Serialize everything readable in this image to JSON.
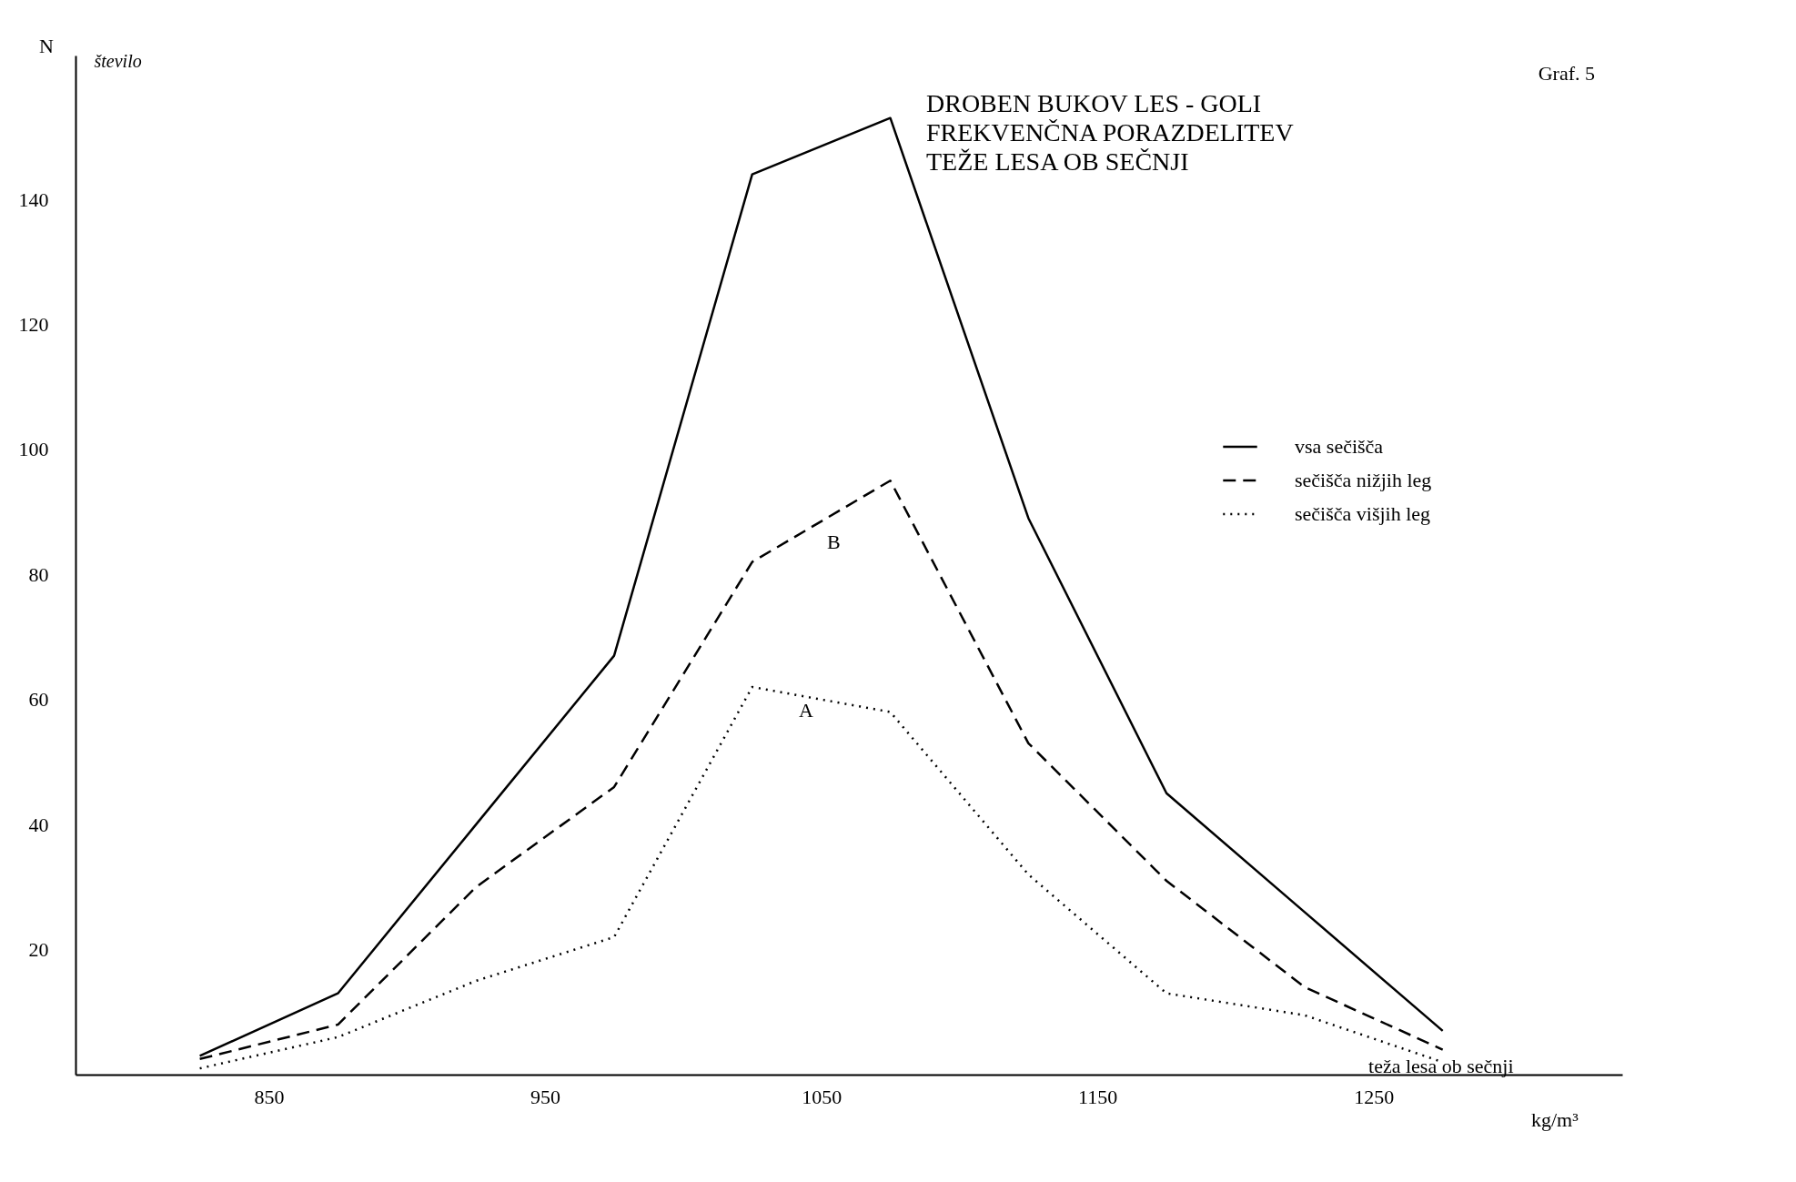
{
  "chart_data": {
    "type": "line",
    "title": "DROBEN BUKOV LES - GOLI\nFREKVENČNA PORAZDELITEV\nTEŽE LESA OB SEČNJI",
    "xlabel": "teža lesa ob sečnji",
    "ylabel": "število",
    "annotations": [
      "Graf. 5",
      "N",
      "kg/m³",
      "A",
      "B"
    ],
    "x": [
      825,
      875,
      925,
      975,
      1025,
      1075,
      1125,
      1175,
      1225,
      1275
    ],
    "series": [
      {
        "name": "vsa sečišča",
        "color": "#000000",
        "line_style": "solid",
        "values": [
          3,
          13,
          40,
          67,
          144,
          153,
          89,
          45,
          26,
          7
        ]
      },
      {
        "name": "sečišča nižjih leg",
        "color": "#000000",
        "line_style": "dashed",
        "values": [
          2.5,
          8,
          30,
          46,
          82,
          95,
          53,
          31,
          14,
          4
        ]
      },
      {
        "name": "sečišča višjih leg",
        "color": "#000000",
        "line_style": "dotted",
        "values": [
          1,
          6,
          15,
          22,
          62,
          58,
          32,
          13,
          9.5,
          2
        ]
      }
    ],
    "xlim": [
      780,
      1340
    ],
    "ylim": [
      0,
      163
    ],
    "xticks": [
      850,
      950,
      1050,
      1150,
      1250
    ],
    "yticks": [
      20,
      40,
      60,
      80,
      100,
      120,
      140
    ],
    "grid": false,
    "legend": "right"
  }
}
